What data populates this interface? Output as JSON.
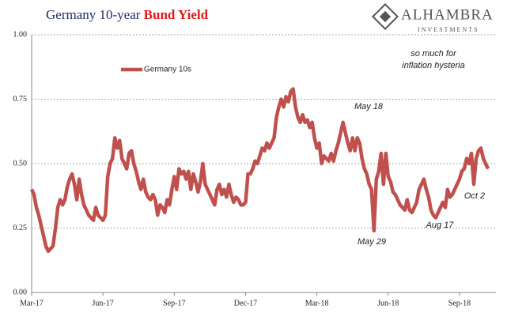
{
  "branding": {
    "name": "ALHAMBRA",
    "tagline": "INVESTMENTS"
  },
  "chart_data": {
    "type": "line",
    "title": "Germany 10-year",
    "title_emphasis": "Bund Yield",
    "annotations": [
      "so much for",
      "inflation hysteria",
      "May 18",
      "May 29",
      "Aug 17",
      "Oct 2"
    ],
    "x": [
      0,
      0.1,
      0.2,
      0.3,
      0.4,
      0.5,
      0.6,
      0.7,
      0.8,
      0.9,
      1,
      1.1,
      1.2,
      1.3,
      1.4,
      1.5,
      1.6,
      1.7,
      1.8,
      1.9,
      2,
      2.1,
      2.2,
      2.3,
      2.4,
      2.5,
      2.6,
      2.7,
      2.8,
      2.9,
      3,
      3.1,
      3.2,
      3.3,
      3.4,
      3.5,
      3.6,
      3.7,
      3.8,
      3.9,
      4,
      4.1,
      4.2,
      4.3,
      4.4,
      4.5,
      4.6,
      4.7,
      4.8,
      4.9,
      5,
      5.1,
      5.2,
      5.3,
      5.4,
      5.5,
      5.6,
      5.7,
      5.8,
      5.9,
      6,
      6.1,
      6.2,
      6.3,
      6.4,
      6.5,
      6.6,
      6.7,
      6.8,
      6.9,
      7,
      7.1,
      7.2,
      7.3,
      7.4,
      7.5,
      7.6,
      7.7,
      7.8,
      7.9,
      8,
      8.1,
      8.2,
      8.3,
      8.4,
      8.5,
      8.6,
      8.7,
      8.8,
      8.9,
      9,
      9.1,
      9.2,
      9.3,
      9.4,
      9.5,
      9.6,
      9.7,
      9.8,
      9.9,
      10,
      10.1,
      10.2,
      10.3,
      10.4,
      10.5,
      10.6,
      10.7,
      10.8,
      10.9,
      11,
      11.1,
      11.2,
      11.3,
      11.4,
      11.5,
      11.6,
      11.7,
      11.8,
      11.9,
      12,
      12.1,
      12.2,
      12.3,
      12.4,
      12.5,
      12.6,
      12.7,
      12.8,
      12.9,
      13,
      13.1,
      13.2,
      13.3,
      13.4,
      13.5,
      13.6,
      13.7,
      13.8,
      13.9,
      14,
      14.1,
      14.2,
      14.3,
      14.4,
      14.5,
      14.6,
      14.7,
      14.8,
      14.9,
      15,
      15.1,
      15.2,
      15.3,
      15.4,
      15.5,
      15.6,
      15.7,
      15.8,
      15.9,
      16,
      16.1,
      16.2,
      16.3,
      16.4,
      16.5,
      16.6,
      16.7,
      16.8,
      16.9,
      17,
      17.1,
      17.2,
      17.3,
      17.4,
      17.5,
      17.6,
      17.7,
      17.8,
      17.9,
      18,
      18.1,
      18.2,
      18.3,
      18.4,
      18.5,
      18.6,
      18.7,
      18.8,
      18.9,
      19,
      19.1,
      19.2
    ],
    "series": [
      {
        "name": "Germany 10s",
        "color": "#c0504d",
        "values": [
          0.4,
          0.38,
          0.33,
          0.3,
          0.26,
          0.22,
          0.18,
          0.16,
          0.17,
          0.18,
          0.25,
          0.33,
          0.36,
          0.34,
          0.36,
          0.41,
          0.44,
          0.46,
          0.42,
          0.36,
          0.44,
          0.38,
          0.34,
          0.32,
          0.3,
          0.29,
          0.28,
          0.33,
          0.3,
          0.29,
          0.28,
          0.3,
          0.45,
          0.5,
          0.52,
          0.6,
          0.56,
          0.59,
          0.52,
          0.5,
          0.48,
          0.54,
          0.55,
          0.5,
          0.47,
          0.43,
          0.4,
          0.44,
          0.39,
          0.37,
          0.36,
          0.38,
          0.36,
          0.3,
          0.34,
          0.33,
          0.31,
          0.36,
          0.34,
          0.4,
          0.45,
          0.4,
          0.48,
          0.46,
          0.47,
          0.44,
          0.47,
          0.4,
          0.46,
          0.43,
          0.39,
          0.43,
          0.5,
          0.42,
          0.4,
          0.38,
          0.36,
          0.34,
          0.4,
          0.42,
          0.38,
          0.4,
          0.37,
          0.42,
          0.38,
          0.35,
          0.37,
          0.36,
          0.34,
          0.34,
          0.35,
          0.46,
          0.46,
          0.48,
          0.51,
          0.5,
          0.53,
          0.56,
          0.55,
          0.58,
          0.56,
          0.58,
          0.6,
          0.68,
          0.72,
          0.75,
          0.72,
          0.76,
          0.74,
          0.78,
          0.79,
          0.72,
          0.68,
          0.66,
          0.69,
          0.66,
          0.67,
          0.64,
          0.66,
          0.6,
          0.56,
          0.58,
          0.5,
          0.53,
          0.52,
          0.51,
          0.54,
          0.51,
          0.55,
          0.58,
          0.62,
          0.66,
          0.62,
          0.58,
          0.55,
          0.6,
          0.55,
          0.6,
          0.58,
          0.52,
          0.48,
          0.46,
          0.42,
          0.4,
          0.24,
          0.44,
          0.47,
          0.54,
          0.42,
          0.54,
          0.45,
          0.43,
          0.39,
          0.38,
          0.36,
          0.34,
          0.33,
          0.32,
          0.36,
          0.32,
          0.31,
          0.33,
          0.35,
          0.4,
          0.42,
          0.44,
          0.4,
          0.37,
          0.32,
          0.3,
          0.29,
          0.31,
          0.33,
          0.35,
          0.33,
          0.4,
          0.37,
          0.38,
          0.4,
          0.42,
          0.44,
          0.47,
          0.48,
          0.52,
          0.5,
          0.54,
          0.42,
          0.52,
          0.55,
          0.56,
          0.52,
          0.5,
          0.48
        ]
      }
    ],
    "xlim": [
      0,
      19.2
    ],
    "xticks": [
      {
        "value": 0,
        "label": "Mar-17"
      },
      {
        "value": 3,
        "label": "Jun-17"
      },
      {
        "value": 6,
        "label": "Sep-17"
      },
      {
        "value": 9,
        "label": "Dec-17"
      },
      {
        "value": 12,
        "label": "Mar-18"
      },
      {
        "value": 15,
        "label": "Jun-18"
      },
      {
        "value": 18,
        "label": "Sep-18"
      }
    ],
    "ylim": [
      0,
      1
    ],
    "yticks": [
      {
        "value": 0,
        "label": "0.00"
      },
      {
        "value": 0.25,
        "label": "0.25"
      },
      {
        "value": 0.5,
        "label": "0.50"
      },
      {
        "value": 0.75,
        "label": "0.75"
      },
      {
        "value": 1,
        "label": "1.00"
      }
    ],
    "grid": true,
    "legend": "upper left"
  }
}
